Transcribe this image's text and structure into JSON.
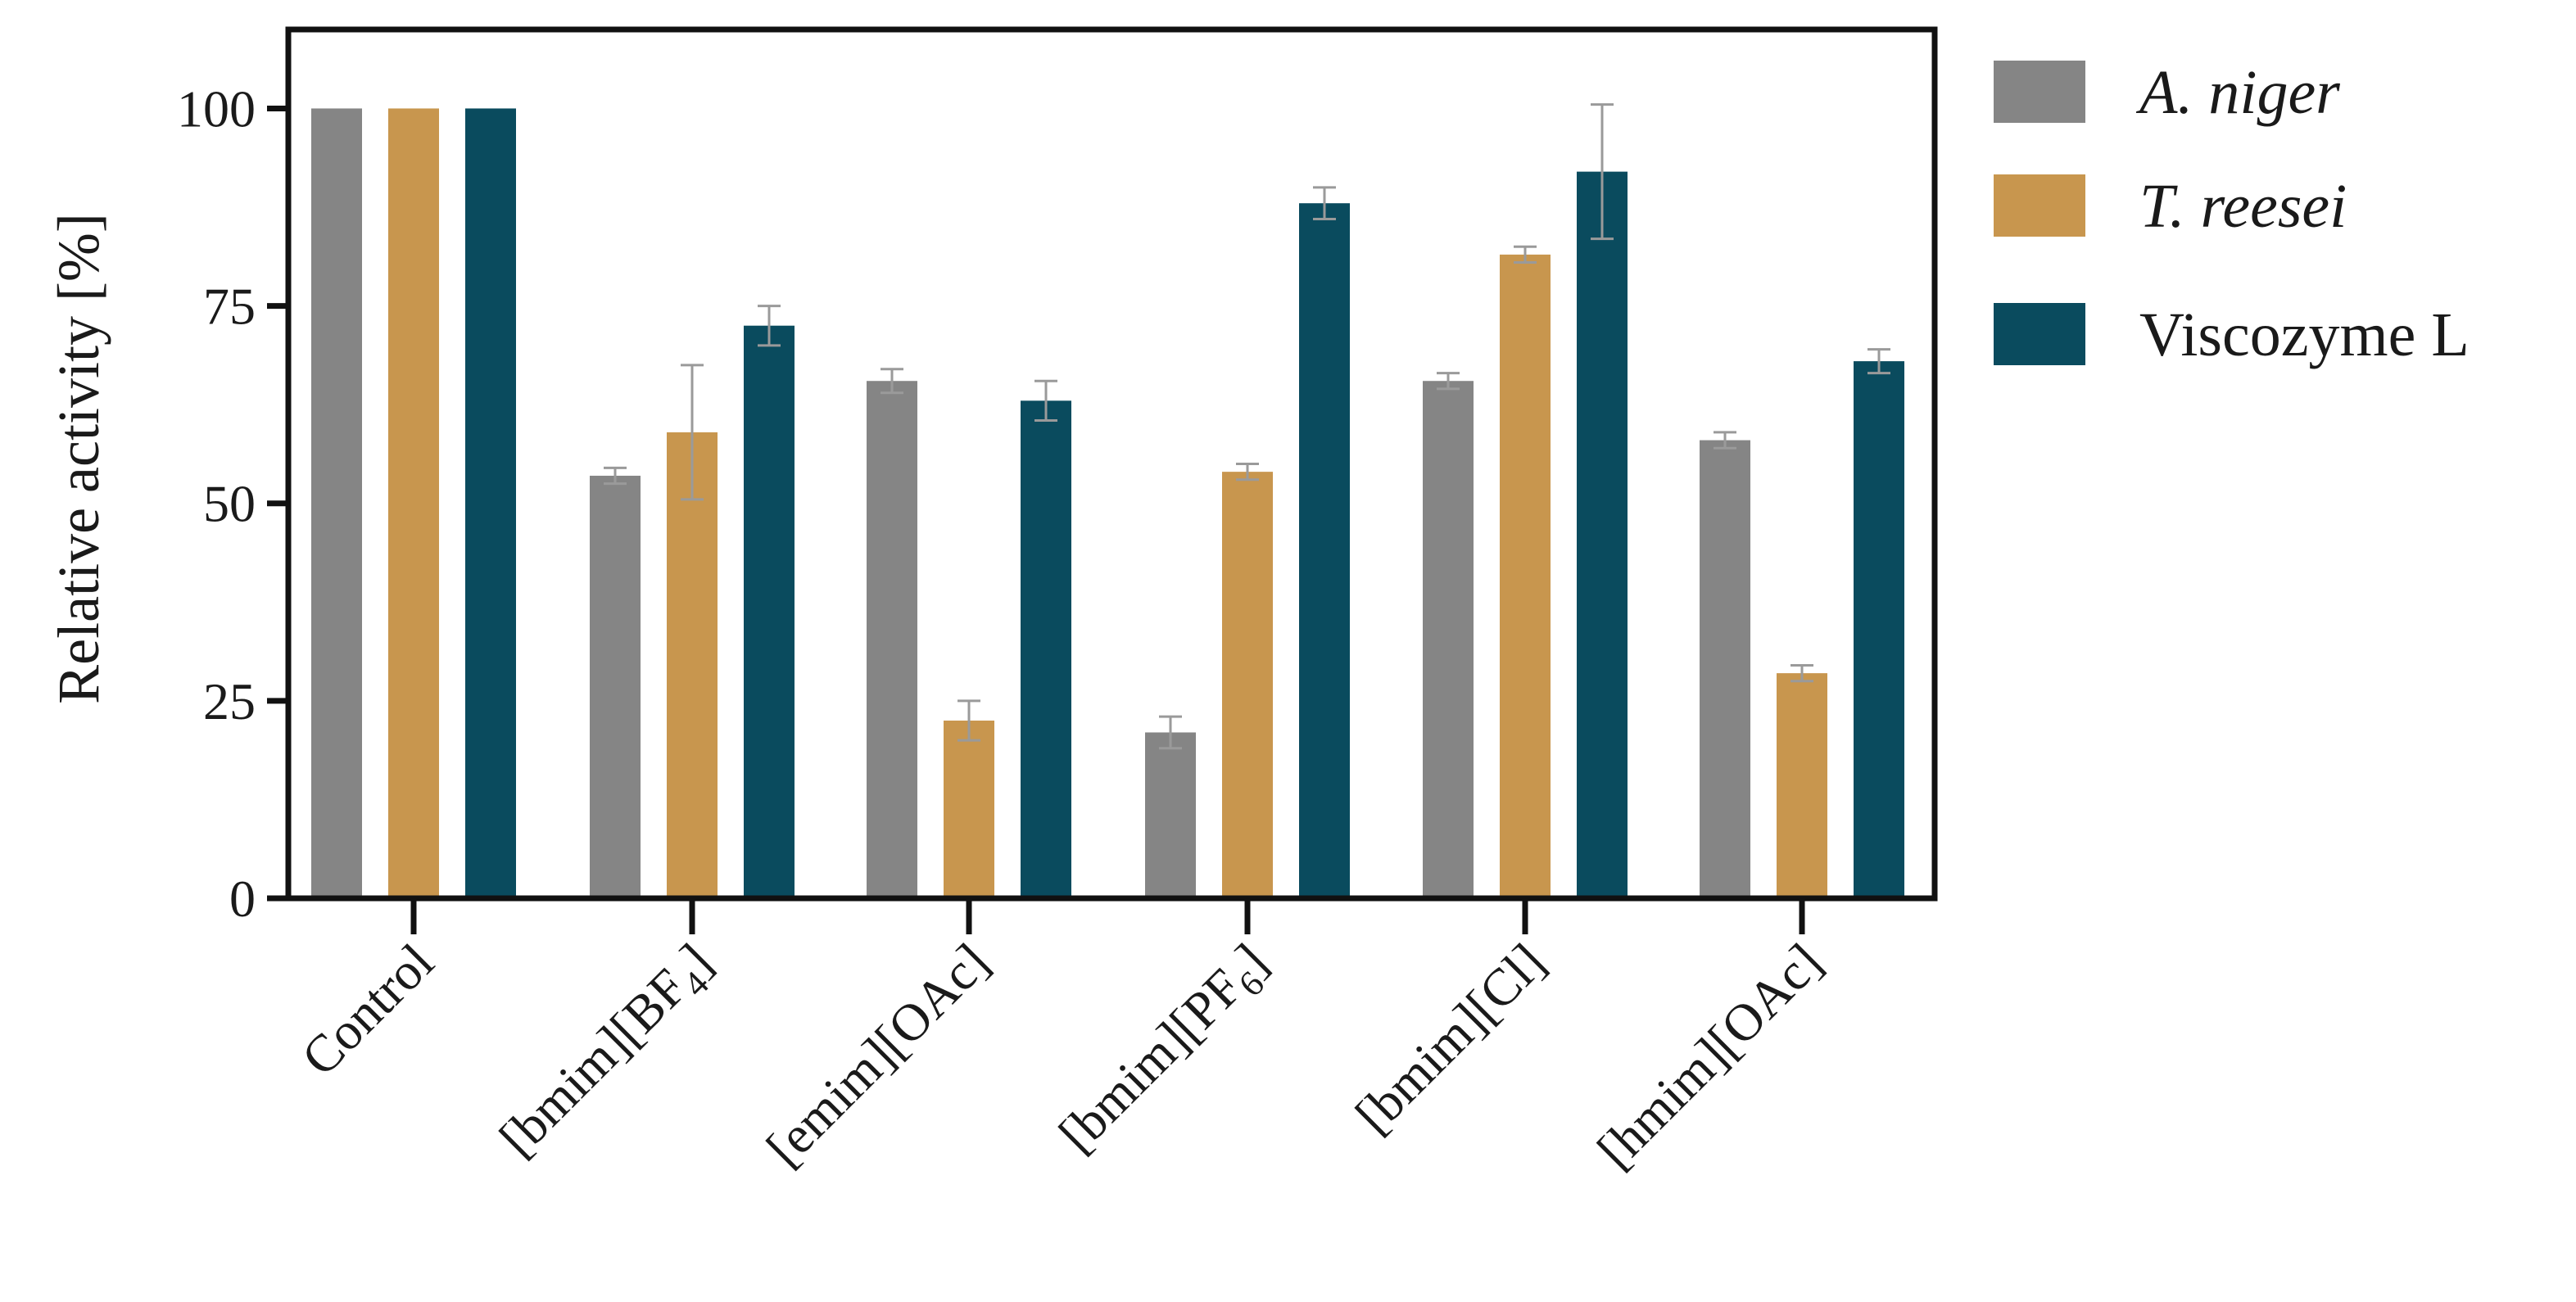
{
  "chart_data": {
    "type": "bar",
    "title": "",
    "xlabel": "",
    "ylabel": "Relative activity [%]",
    "ylim": [
      0,
      110
    ],
    "yticks": [
      "0",
      "25",
      "50",
      "75",
      "100"
    ],
    "grid": false,
    "legend_position": "right",
    "categories": [
      {
        "base": "Control",
        "sub": ""
      },
      {
        "base": "[bmim][BF",
        "sub": "4",
        "suffix": "]"
      },
      {
        "base": "[emim][OAc]",
        "sub": ""
      },
      {
        "base": "[bmim][PF",
        "sub": "6",
        "suffix": "]"
      },
      {
        "base": "[bmim][Cl]",
        "sub": ""
      },
      {
        "base": "[hmim][OAc]",
        "sub": ""
      }
    ],
    "series": [
      {
        "name": "A. niger",
        "italic": true,
        "color": "#858585",
        "values": [
          100,
          53.5,
          65.5,
          21,
          65.5,
          58
        ],
        "errors": [
          0,
          1,
          1.5,
          2,
          1,
          1
        ]
      },
      {
        "name": "T. reesei",
        "italic": true,
        "color": "#c8964e",
        "values": [
          100,
          59,
          22.5,
          54,
          81.5,
          28.5
        ],
        "errors": [
          0,
          8.5,
          2.5,
          1,
          1,
          1
        ]
      },
      {
        "name": "Viscozyme L",
        "italic": false,
        "color": "#0a4b5e",
        "values": [
          100,
          72.5,
          63,
          88,
          92,
          68
        ],
        "errors": [
          0,
          2.5,
          2.5,
          2,
          8.5,
          1.5
        ]
      }
    ]
  }
}
